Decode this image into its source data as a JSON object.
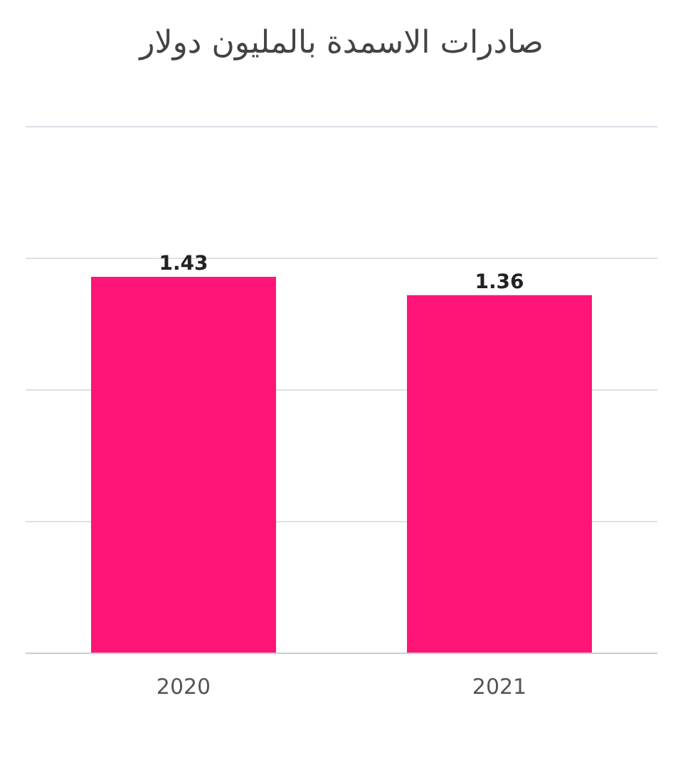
{
  "chart_data": {
    "type": "bar",
    "title": "صادرات الاسمدة بالمليون دولار",
    "categories": [
      "2020",
      "2021"
    ],
    "values": [
      1.43,
      1.36
    ],
    "color": "#ff1577",
    "data_labels": true,
    "ylim": [
      0,
      2
    ],
    "yticks": [
      {
        "value": 0,
        "label": null
      },
      {
        "value": 0.5,
        "label": null
      },
      {
        "value": 1,
        "label": null
      },
      {
        "value": 1.5,
        "label": null
      },
      {
        "value": 2,
        "label": null
      }
    ],
    "grid": "y",
    "tick_labels": "x"
  }
}
